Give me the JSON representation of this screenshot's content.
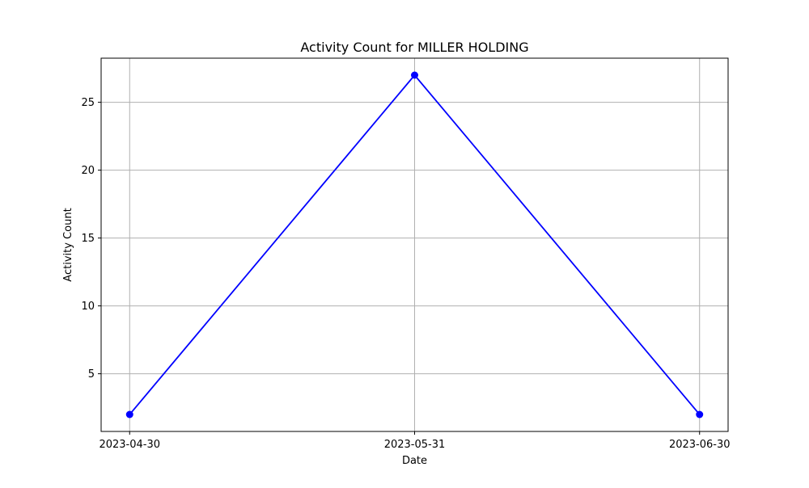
{
  "chart_data": {
    "type": "line",
    "title": "Activity Count for MILLER HOLDING",
    "xlabel": "Date",
    "ylabel": "Activity Count",
    "x": [
      "2023-04-30",
      "2023-05-31",
      "2023-06-30"
    ],
    "series": [
      {
        "values": [
          2,
          27,
          2
        ],
        "color": "#0000ff",
        "marker": "circle"
      }
    ],
    "ylim": [
      0.75,
      28.25
    ],
    "y_ticks": [
      5,
      10,
      15,
      20,
      25
    ],
    "grid": true,
    "legend": "none"
  }
}
